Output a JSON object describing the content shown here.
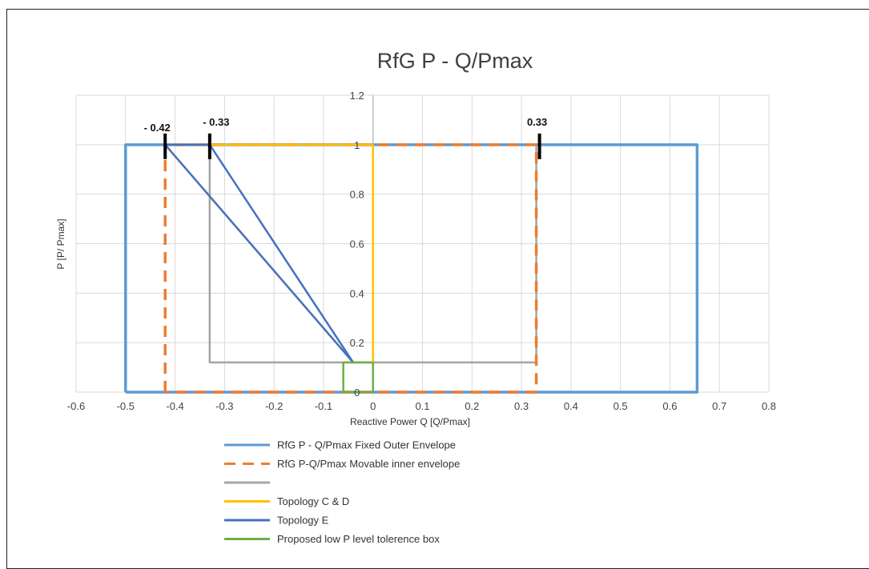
{
  "chart_data": {
    "type": "line",
    "title": "RfG P  -  Q/Pmax",
    "xlabel": "Reactive Power Q  [Q/Pmax]",
    "ylabel": "P  [P/ Pmax]",
    "xlim": [
      -0.6,
      0.8
    ],
    "ylim": [
      0,
      1.2
    ],
    "x_ticks": [
      "-0.6",
      "-0.5",
      "-0.4",
      "-0.3",
      "-0.2",
      "-0.1",
      "0",
      "0.1",
      "0.2",
      "0.3",
      "0.4",
      "0.5",
      "0.6",
      "0.7",
      "0.8"
    ],
    "y_ticks": [
      "0",
      "0.2",
      "0.4",
      "0.6",
      "0.8",
      "1",
      "1.2"
    ],
    "grid": true,
    "legend_position": "bottom",
    "series": [
      {
        "name": "RfG P -  Q/Pmax Fixed Outer Envelope",
        "color": "#5B9BD5",
        "style": "solid",
        "points": [
          [
            -0.5,
            0
          ],
          [
            -0.5,
            1
          ],
          [
            0.655,
            1
          ],
          [
            0.655,
            0
          ],
          [
            -0.5,
            0
          ]
        ]
      },
      {
        "name": "RfG P-Q/Pmax Movable inner envelope",
        "color": "#ED7D31",
        "style": "dashed",
        "points": [
          [
            -0.42,
            0
          ],
          [
            -0.42,
            1
          ],
          [
            0.33,
            1
          ],
          [
            0.33,
            0
          ],
          [
            -0.42,
            0
          ]
        ]
      },
      {
        "name": "",
        "color": "#A5A5A5",
        "style": "solid",
        "points": [
          [
            -0.33,
            1
          ],
          [
            -0.33,
            0.12
          ],
          [
            0.33,
            0.12
          ],
          [
            0.33,
            1
          ]
        ]
      },
      {
        "name": "Topology C & D",
        "color": "#FFC000",
        "style": "solid",
        "points": [
          [
            -0.42,
            1
          ],
          [
            -0.04,
            0.12
          ],
          [
            0,
            0.12
          ],
          [
            0,
            1
          ],
          [
            -0.42,
            1
          ]
        ]
      },
      {
        "name": "Topology E",
        "color": "#4472C4",
        "style": "solid",
        "points": [
          [
            -0.42,
            1
          ],
          [
            -0.04,
            0.12
          ],
          [
            -0.33,
            1
          ],
          [
            -0.42,
            1
          ]
        ]
      },
      {
        "name": "Proposed low P level tolerence box",
        "color": "#70AD47",
        "style": "solid",
        "points": [
          [
            -0.06,
            0
          ],
          [
            -0.06,
            0.12
          ],
          [
            0,
            0.12
          ],
          [
            0,
            0
          ],
          [
            -0.06,
            0
          ]
        ]
      }
    ],
    "annotations": [
      {
        "text": "- 0.42",
        "x": -0.42,
        "y": 1
      },
      {
        "text": "- 0.33",
        "x": -0.33,
        "y": 1
      },
      {
        "text": "0.33",
        "x": 0.33,
        "y": 1
      }
    ]
  }
}
